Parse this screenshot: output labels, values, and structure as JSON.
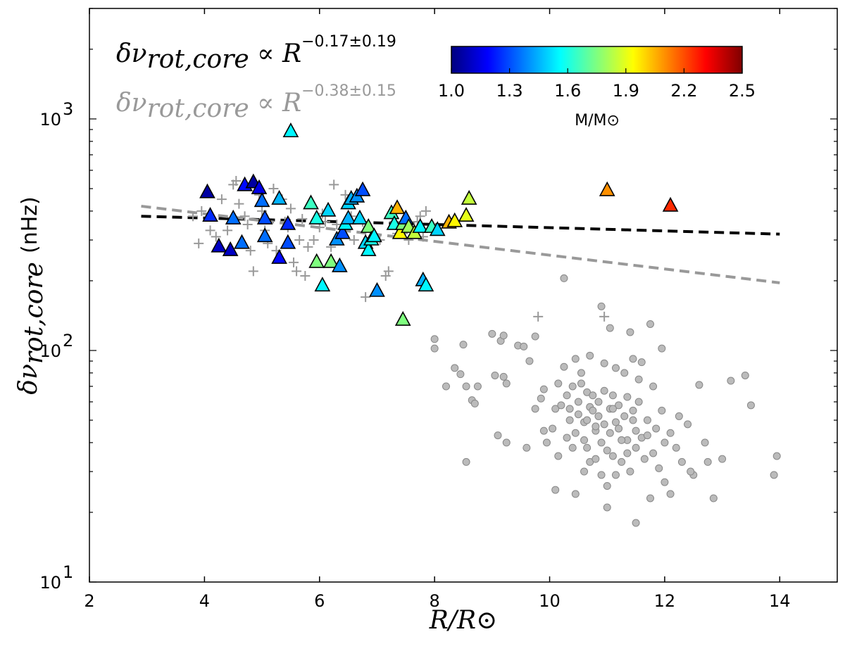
{
  "chart_data": {
    "type": "scatter",
    "xlabel": "R/R⊙",
    "ylabel": "δν",
    "ylabel_sub": "rot,core",
    "ylabel_unit": "(nHz)",
    "xlim": [
      2,
      15
    ],
    "ylim": [
      10,
      3000
    ],
    "yscale": "log",
    "x_ticks": [
      2,
      4,
      6,
      8,
      10,
      12,
      14
    ],
    "x_tick_labels": [
      "2",
      "4",
      "6",
      "8",
      "10",
      "12",
      "14"
    ],
    "y_ticks": [
      10,
      100,
      1000
    ],
    "y_tick_labels": [
      "10",
      "10",
      "10"
    ],
    "y_tick_exponents": [
      "1",
      "2",
      "3"
    ],
    "grid": false,
    "annotations": [
      {
        "lhs": "δν",
        "sub": "rot,core",
        "rel": " ∝ R",
        "exp": "−0.17±0.19",
        "color": "#000000"
      },
      {
        "lhs": "δν",
        "sub": "rot,core",
        "rel": " ∝ R",
        "exp": "−0.38±0.15",
        "color": "#999999"
      }
    ],
    "colorbar": {
      "label": "M/M⊙",
      "range": [
        1.0,
        2.5
      ],
      "ticks": [
        1.0,
        1.3,
        1.6,
        1.9,
        2.2,
        2.5
      ],
      "tick_labels": [
        "1.0",
        "1.3",
        "1.6",
        "1.9",
        "2.2",
        "2.5"
      ],
      "colormap": "jet",
      "stops": [
        "#00007f",
        "#0000ff",
        "#007fff",
        "#00ffff",
        "#7fff7f",
        "#ffff00",
        "#ff7f00",
        "#ff0000",
        "#7f0000"
      ]
    },
    "fit_lines": [
      {
        "x0": 2.9,
        "y0": 380,
        "x1": 14.0,
        "y1": 318,
        "color": "#000000"
      },
      {
        "x0": 2.9,
        "y0": 420,
        "x1": 14.0,
        "y1": 196,
        "color": "#999999"
      }
    ],
    "series": [
      {
        "marker": "triangle",
        "colored_by": "mass",
        "points": [
          [
            4.05,
            480,
            1.05
          ],
          [
            4.1,
            380,
            1.25
          ],
          [
            4.25,
            280,
            1.1
          ],
          [
            4.45,
            270,
            1.1
          ],
          [
            4.5,
            370,
            1.35
          ],
          [
            4.65,
            290,
            1.35
          ],
          [
            4.7,
            515,
            1.2
          ],
          [
            4.85,
            530,
            1.05
          ],
          [
            4.95,
            500,
            1.15
          ],
          [
            5.0,
            440,
            1.35
          ],
          [
            5.05,
            370,
            1.3
          ],
          [
            5.05,
            310,
            1.35
          ],
          [
            5.3,
            450,
            1.45
          ],
          [
            5.3,
            250,
            1.2
          ],
          [
            5.45,
            290,
            1.3
          ],
          [
            5.45,
            350,
            1.25
          ],
          [
            5.5,
            880,
            1.55
          ],
          [
            5.85,
            430,
            1.65
          ],
          [
            5.95,
            370,
            1.6
          ],
          [
            5.95,
            240,
            1.75
          ],
          [
            6.05,
            190,
            1.55
          ],
          [
            6.15,
            400,
            1.5
          ],
          [
            6.2,
            240,
            1.75
          ],
          [
            6.3,
            300,
            1.4
          ],
          [
            6.35,
            230,
            1.4
          ],
          [
            6.4,
            320,
            1.3
          ],
          [
            6.45,
            350,
            1.55
          ],
          [
            6.5,
            430,
            1.5
          ],
          [
            6.5,
            370,
            1.45
          ],
          [
            6.55,
            450,
            1.45
          ],
          [
            6.65,
            460,
            1.4
          ],
          [
            6.7,
            370,
            1.5
          ],
          [
            6.75,
            490,
            1.3
          ],
          [
            6.8,
            290,
            1.5
          ],
          [
            6.85,
            270,
            1.55
          ],
          [
            6.85,
            340,
            1.75
          ],
          [
            6.9,
            300,
            1.6
          ],
          [
            6.95,
            310,
            1.55
          ],
          [
            7.0,
            180,
            1.4
          ],
          [
            7.25,
            390,
            1.65
          ],
          [
            7.3,
            350,
            1.6
          ],
          [
            7.35,
            410,
            2.05
          ],
          [
            7.4,
            320,
            1.95
          ],
          [
            7.45,
            350,
            1.75
          ],
          [
            7.45,
            135,
            1.75
          ],
          [
            7.5,
            370,
            1.35
          ],
          [
            7.55,
            340,
            1.8
          ],
          [
            7.65,
            320,
            1.85
          ],
          [
            7.75,
            340,
            1.55
          ],
          [
            7.8,
            200,
            1.45
          ],
          [
            7.85,
            190,
            1.55
          ],
          [
            7.95,
            340,
            1.65
          ],
          [
            8.05,
            330,
            1.5
          ],
          [
            8.25,
            355,
            2.05
          ],
          [
            8.35,
            360,
            1.95
          ],
          [
            8.55,
            380,
            1.9
          ],
          [
            8.6,
            450,
            1.85
          ],
          [
            11.0,
            490,
            2.1
          ],
          [
            12.1,
            420,
            2.25
          ]
        ]
      },
      {
        "marker": "plus",
        "color": "#999999",
        "points": [
          [
            3.8,
            380
          ],
          [
            3.9,
            290
          ],
          [
            3.95,
            400
          ],
          [
            4.1,
            330
          ],
          [
            4.2,
            310
          ],
          [
            4.3,
            450
          ],
          [
            4.4,
            330
          ],
          [
            4.5,
            520
          ],
          [
            4.55,
            540
          ],
          [
            4.6,
            430
          ],
          [
            4.7,
            380
          ],
          [
            4.75,
            350
          ],
          [
            4.8,
            270
          ],
          [
            4.85,
            220
          ],
          [
            4.95,
            470
          ],
          [
            5.0,
            400
          ],
          [
            5.05,
            330
          ],
          [
            5.1,
            290
          ],
          [
            5.2,
            500
          ],
          [
            5.25,
            270
          ],
          [
            5.35,
            450
          ],
          [
            5.4,
            360
          ],
          [
            5.45,
            340
          ],
          [
            5.5,
            410
          ],
          [
            5.55,
            240
          ],
          [
            5.6,
            220
          ],
          [
            5.65,
            300
          ],
          [
            5.7,
            370
          ],
          [
            5.75,
            210
          ],
          [
            5.8,
            280
          ],
          [
            5.9,
            300
          ],
          [
            6.0,
            340
          ],
          [
            6.05,
            390
          ],
          [
            6.1,
            360
          ],
          [
            6.2,
            280
          ],
          [
            6.25,
            520
          ],
          [
            6.3,
            350
          ],
          [
            6.35,
            310
          ],
          [
            6.45,
            470
          ],
          [
            6.55,
            380
          ],
          [
            6.6,
            300
          ],
          [
            6.75,
            360
          ],
          [
            6.8,
            170
          ],
          [
            6.9,
            300
          ],
          [
            7.05,
            300
          ],
          [
            7.15,
            210
          ],
          [
            7.2,
            220
          ],
          [
            7.3,
            360
          ],
          [
            7.35,
            320
          ],
          [
            7.45,
            320
          ],
          [
            7.55,
            300
          ],
          [
            7.65,
            340
          ],
          [
            7.7,
            360
          ],
          [
            7.75,
            380
          ],
          [
            7.8,
            310
          ],
          [
            7.85,
            400
          ],
          [
            9.8,
            140
          ],
          [
            10.95,
            140
          ]
        ]
      },
      {
        "marker": "circle",
        "color": "#bbbbbb",
        "points": [
          [
            8.0,
            112
          ],
          [
            8.0,
            102
          ],
          [
            8.2,
            70
          ],
          [
            8.35,
            84
          ],
          [
            8.45,
            79
          ],
          [
            8.5,
            106
          ],
          [
            8.55,
            70
          ],
          [
            8.65,
            61
          ],
          [
            8.7,
            59
          ],
          [
            8.75,
            70
          ],
          [
            9.0,
            118
          ],
          [
            9.05,
            78
          ],
          [
            9.1,
            43
          ],
          [
            9.15,
            110
          ],
          [
            9.2,
            116
          ],
          [
            9.2,
            77
          ],
          [
            9.25,
            72
          ],
          [
            9.25,
            40
          ],
          [
            9.45,
            105
          ],
          [
            9.55,
            104
          ],
          [
            9.65,
            90
          ],
          [
            9.75,
            56
          ],
          [
            9.75,
            115
          ],
          [
            9.85,
            62
          ],
          [
            9.9,
            68
          ],
          [
            9.9,
            45
          ],
          [
            9.95,
            40
          ],
          [
            10.05,
            46
          ],
          [
            10.1,
            56
          ],
          [
            10.15,
            35
          ],
          [
            10.2,
            58
          ],
          [
            10.25,
            205
          ],
          [
            10.3,
            42
          ],
          [
            10.3,
            64
          ],
          [
            10.35,
            50
          ],
          [
            10.35,
            56
          ],
          [
            10.4,
            70
          ],
          [
            10.45,
            44
          ],
          [
            10.5,
            53
          ],
          [
            10.5,
            60
          ],
          [
            10.55,
            72
          ],
          [
            10.6,
            49
          ],
          [
            10.6,
            41
          ],
          [
            10.65,
            66
          ],
          [
            10.65,
            38
          ],
          [
            10.7,
            57
          ],
          [
            10.7,
            33
          ],
          [
            10.75,
            55
          ],
          [
            10.75,
            64
          ],
          [
            10.8,
            45
          ],
          [
            10.8,
            34
          ],
          [
            10.85,
            60
          ],
          [
            10.85,
            52
          ],
          [
            10.9,
            40
          ],
          [
            10.9,
            29
          ],
          [
            10.95,
            67
          ],
          [
            10.95,
            48
          ],
          [
            11.0,
            37
          ],
          [
            11.0,
            26
          ],
          [
            11.05,
            56
          ],
          [
            11.05,
            44
          ],
          [
            11.1,
            64
          ],
          [
            11.1,
            35
          ],
          [
            11.15,
            49
          ],
          [
            11.15,
            29
          ],
          [
            11.2,
            58
          ],
          [
            11.2,
            46
          ],
          [
            11.25,
            33
          ],
          [
            11.3,
            52
          ],
          [
            11.35,
            63
          ],
          [
            11.35,
            41
          ],
          [
            11.4,
            30
          ],
          [
            11.45,
            50
          ],
          [
            11.5,
            38
          ],
          [
            11.5,
            45
          ],
          [
            11.55,
            60
          ],
          [
            11.6,
            42
          ],
          [
            11.65,
            34
          ],
          [
            11.7,
            50
          ],
          [
            11.75,
            23
          ],
          [
            11.8,
            36
          ],
          [
            11.85,
            46
          ],
          [
            11.9,
            31
          ],
          [
            11.95,
            55
          ],
          [
            12.0,
            40
          ],
          [
            12.0,
            27
          ],
          [
            12.1,
            44
          ],
          [
            12.2,
            38
          ],
          [
            12.3,
            33
          ],
          [
            12.4,
            48
          ],
          [
            12.5,
            29
          ],
          [
            12.6,
            71
          ],
          [
            12.7,
            40
          ],
          [
            12.75,
            33
          ],
          [
            12.85,
            23
          ],
          [
            13.0,
            34
          ],
          [
            13.15,
            74
          ],
          [
            13.4,
            78
          ],
          [
            13.5,
            58
          ],
          [
            13.9,
            29
          ],
          [
            13.95,
            35
          ],
          [
            10.9,
            155
          ],
          [
            11.05,
            125
          ],
          [
            11.4,
            120
          ],
          [
            11.75,
            130
          ],
          [
            11.95,
            102
          ],
          [
            10.45,
            92
          ],
          [
            10.7,
            95
          ],
          [
            11.15,
            84
          ],
          [
            11.3,
            80
          ],
          [
            11.55,
            75
          ],
          [
            11.6,
            89
          ],
          [
            10.55,
            80
          ],
          [
            10.25,
            85
          ],
          [
            10.95,
            88
          ],
          [
            11.45,
            92
          ],
          [
            10.15,
            72
          ],
          [
            11.8,
            70
          ],
          [
            10.65,
            50
          ],
          [
            10.8,
            47
          ],
          [
            11.1,
            56
          ],
          [
            11.25,
            41
          ],
          [
            11.45,
            55
          ],
          [
            10.4,
            38
          ],
          [
            10.6,
            30
          ],
          [
            11.35,
            36
          ],
          [
            11.7,
            43
          ],
          [
            12.25,
            52
          ],
          [
            10.1,
            25
          ],
          [
            10.45,
            24
          ],
          [
            11.0,
            21
          ],
          [
            11.5,
            18
          ],
          [
            12.1,
            24
          ],
          [
            9.6,
            38
          ],
          [
            8.55,
            33
          ],
          [
            12.45,
            30
          ]
        ]
      }
    ]
  }
}
